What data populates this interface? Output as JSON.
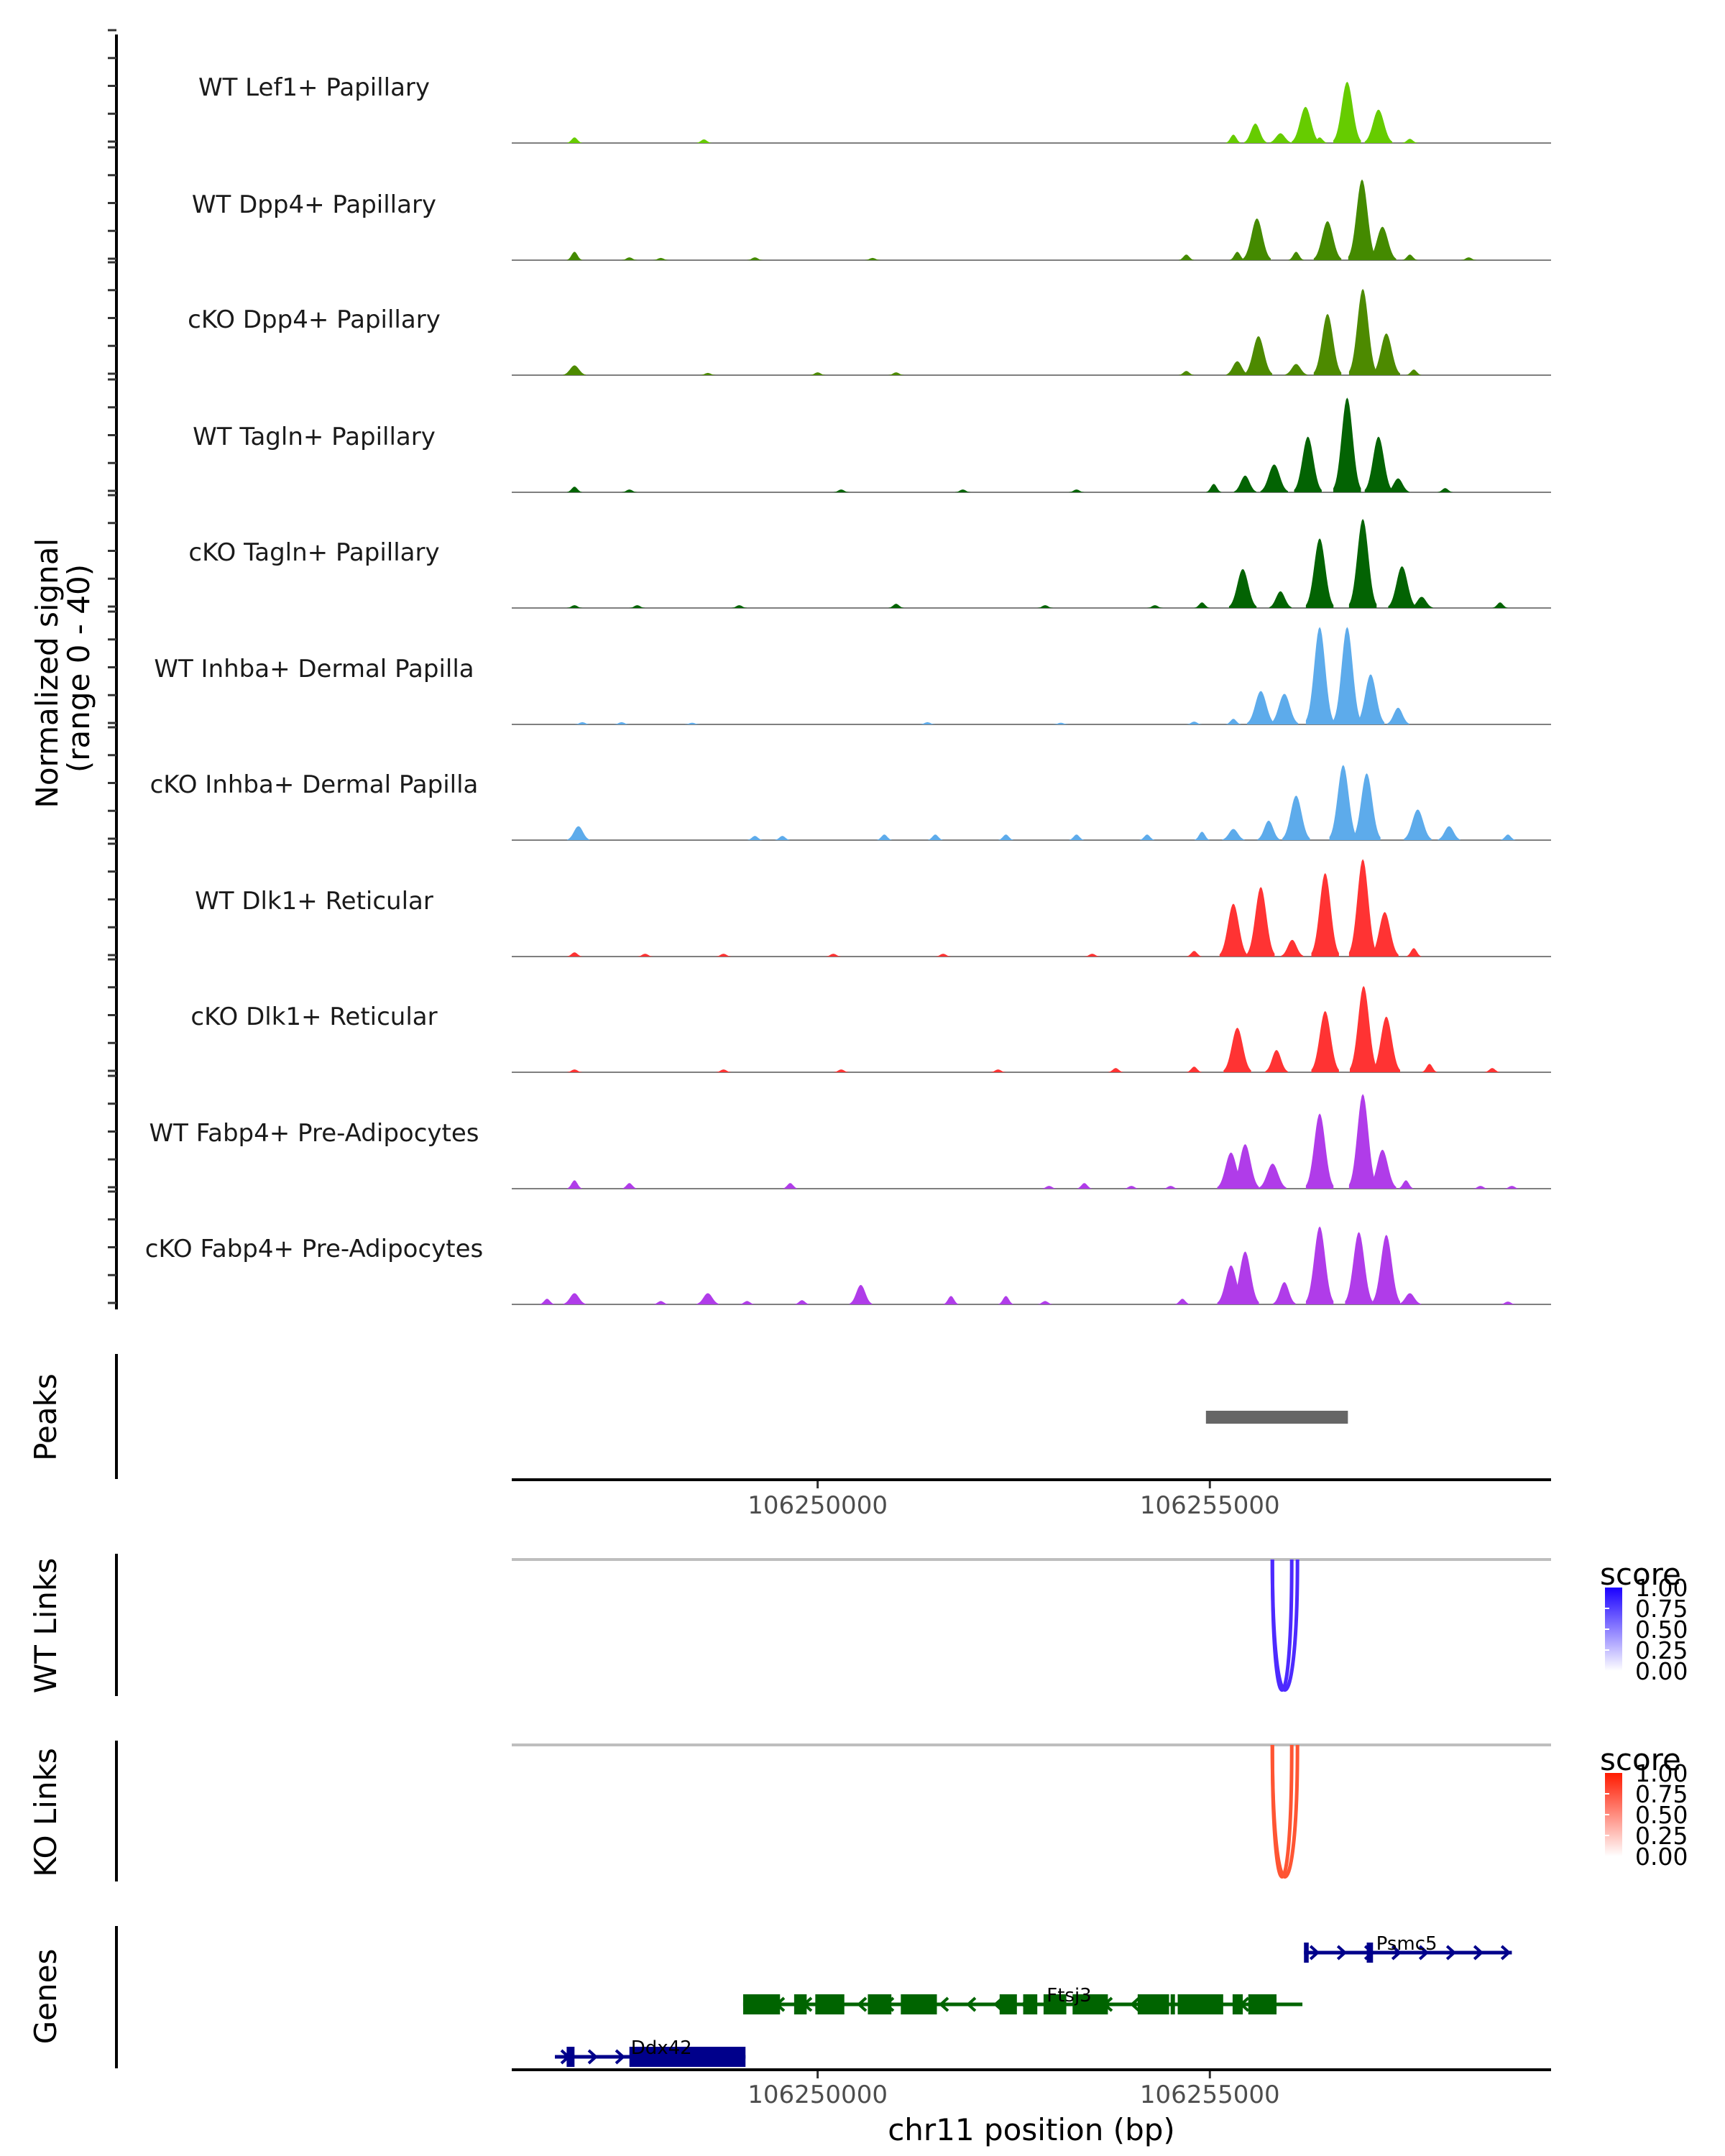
{
  "chart_data": {
    "type": "area",
    "title": "",
    "chromosome": "chr11",
    "xlabel": "chr11 position (bp)",
    "ylabel": "Normalized signal\n(range 0 - 40)",
    "ylabel_lines": [
      "Normalized signal",
      "(range 0 - 40)"
    ],
    "ylim": [
      0,
      40
    ],
    "xlim": [
      106246100,
      106259350
    ],
    "x_ticks": [
      106250000,
      106255000
    ],
    "x_tick_labels": [
      "106250000",
      "106255000"
    ],
    "coverage_tracks": [
      {
        "name": "WT Lef1+ Papillary",
        "color": "#66cc00",
        "peaks": [
          [
            106246900,
            2
          ],
          [
            106248550,
            1.3
          ],
          [
            106255300,
            3
          ],
          [
            106255580,
            7
          ],
          [
            106255900,
            3.5
          ],
          [
            106256220,
            13
          ],
          [
            106256750,
            22
          ],
          [
            106257150,
            12
          ],
          [
            106256400,
            2
          ],
          [
            106257550,
            1.5
          ]
        ]
      },
      {
        "name": "WT Dpp4+ Papillary",
        "color": "#448a00",
        "peaks": [
          [
            106246900,
            3
          ],
          [
            106247600,
            1
          ],
          [
            106248000,
            0.8
          ],
          [
            106249200,
            1
          ],
          [
            106250700,
            0.8
          ],
          [
            106254700,
            2
          ],
          [
            106255350,
            3
          ],
          [
            106255600,
            15
          ],
          [
            106256100,
            3
          ],
          [
            106256500,
            14
          ],
          [
            106256940,
            29
          ],
          [
            106257200,
            12
          ],
          [
            106257550,
            2
          ],
          [
            106258300,
            1
          ]
        ]
      },
      {
        "name": "cKO Dpp4+ Papillary",
        "color": "#4d8a00",
        "peaks": [
          [
            106246900,
            3.5
          ],
          [
            106248600,
            0.8
          ],
          [
            106250000,
            1
          ],
          [
            106251000,
            1
          ],
          [
            106254700,
            1.5
          ],
          [
            106255350,
            5
          ],
          [
            106255620,
            14
          ],
          [
            106256100,
            4
          ],
          [
            106256500,
            22
          ],
          [
            106256950,
            31
          ],
          [
            106257250,
            15
          ],
          [
            106257600,
            2
          ]
        ]
      },
      {
        "name": "WT Tagln+ Papillary",
        "color": "#036303",
        "peaks": [
          [
            106246900,
            2
          ],
          [
            106247600,
            1
          ],
          [
            106250300,
            1
          ],
          [
            106251850,
            1
          ],
          [
            106253300,
            1
          ],
          [
            106255050,
            3
          ],
          [
            106255450,
            6
          ],
          [
            106255820,
            10
          ],
          [
            106256250,
            20
          ],
          [
            106256750,
            34
          ],
          [
            106257150,
            20
          ],
          [
            106257400,
            5
          ],
          [
            106258000,
            1.5
          ]
        ]
      },
      {
        "name": "cKO Tagln+ Papillary",
        "color": "#036303",
        "peaks": [
          [
            106246900,
            1
          ],
          [
            106247700,
            1
          ],
          [
            106249000,
            1
          ],
          [
            106251000,
            1.5
          ],
          [
            106252900,
            1
          ],
          [
            106254300,
            1
          ],
          [
            106254900,
            2
          ],
          [
            106255420,
            14
          ],
          [
            106255900,
            6
          ],
          [
            106256400,
            25
          ],
          [
            106256950,
            32
          ],
          [
            106257450,
            15
          ],
          [
            106257700,
            4
          ],
          [
            106258700,
            2
          ]
        ]
      },
      {
        "name": "WT Inhba+ Dermal Papilla",
        "color": "#5dabeb",
        "peaks": [
          [
            106247000,
            0.8
          ],
          [
            106247500,
            0.8
          ],
          [
            106248400,
            0.6
          ],
          [
            106251400,
            0.8
          ],
          [
            106253100,
            0.6
          ],
          [
            106254800,
            1
          ],
          [
            106255300,
            2
          ],
          [
            106255650,
            12
          ],
          [
            106255950,
            11
          ],
          [
            106256400,
            35
          ],
          [
            106256750,
            35
          ],
          [
            106257050,
            18
          ],
          [
            106257400,
            6
          ]
        ]
      },
      {
        "name": "cKO Inhba+ Dermal Papilla",
        "color": "#5dabeb",
        "peaks": [
          [
            106246950,
            5
          ],
          [
            106249200,
            1.5
          ],
          [
            106249550,
            1.5
          ],
          [
            106250850,
            2
          ],
          [
            106251500,
            2
          ],
          [
            106252400,
            2
          ],
          [
            106253300,
            2
          ],
          [
            106254200,
            2
          ],
          [
            106254900,
            3
          ],
          [
            106255300,
            4
          ],
          [
            106255750,
            7
          ],
          [
            106256100,
            16
          ],
          [
            106256700,
            27
          ],
          [
            106257000,
            24
          ],
          [
            106257650,
            11
          ],
          [
            106258050,
            5
          ],
          [
            106258800,
            2
          ]
        ]
      },
      {
        "name": "WT Dlk1+ Reticular",
        "color": "#ff3333",
        "peaks": [
          [
            106246900,
            1.5
          ],
          [
            106247800,
            1
          ],
          [
            106248800,
            1
          ],
          [
            106250200,
            1
          ],
          [
            106251600,
            1
          ],
          [
            106253500,
            1
          ],
          [
            106254800,
            2
          ],
          [
            106255300,
            19
          ],
          [
            106255650,
            25
          ],
          [
            106256050,
            6
          ],
          [
            106256470,
            30
          ],
          [
            106256950,
            35
          ],
          [
            106257230,
            16
          ],
          [
            106257600,
            3
          ]
        ]
      },
      {
        "name": "cKO Dlk1+ Reticular",
        "color": "#ff3333",
        "peaks": [
          [
            106246900,
            1
          ],
          [
            106248800,
            1
          ],
          [
            106250300,
            1
          ],
          [
            106252300,
            1
          ],
          [
            106253800,
            1.5
          ],
          [
            106254800,
            2
          ],
          [
            106255350,
            16
          ],
          [
            106255850,
            8
          ],
          [
            106256470,
            22
          ],
          [
            106256960,
            31
          ],
          [
            106257250,
            20
          ],
          [
            106257800,
            3
          ],
          [
            106258600,
            1.5
          ]
        ]
      },
      {
        "name": "WT Fabp4+ Pre-Adipocytes",
        "color": "#b03ce9",
        "peaks": [
          [
            106246900,
            3
          ],
          [
            106247600,
            2
          ],
          [
            106249650,
            2
          ],
          [
            106252950,
            1
          ],
          [
            106253400,
            2
          ],
          [
            106254000,
            1
          ],
          [
            106254500,
            1
          ],
          [
            106255270,
            13
          ],
          [
            106255450,
            16
          ],
          [
            106255800,
            9
          ],
          [
            106256400,
            27
          ],
          [
            106256950,
            34
          ],
          [
            106257200,
            14
          ],
          [
            106257500,
            3
          ],
          [
            106258450,
            1
          ],
          [
            106258850,
            1
          ]
        ]
      },
      {
        "name": "cKO Fabp4+ Pre-Adipocytes",
        "color": "#b03ce9",
        "peaks": [
          [
            106246550,
            2
          ],
          [
            106246900,
            4
          ],
          [
            106248000,
            1.2
          ],
          [
            106248600,
            4
          ],
          [
            106249100,
            1.2
          ],
          [
            106249800,
            1.5
          ],
          [
            106250550,
            7
          ],
          [
            106251700,
            3
          ],
          [
            106252400,
            3
          ],
          [
            106252900,
            1.2
          ],
          [
            106254650,
            2
          ],
          [
            106255270,
            14
          ],
          [
            106255450,
            19
          ],
          [
            106255950,
            8
          ],
          [
            106256400,
            28
          ],
          [
            106256900,
            26
          ],
          [
            106257250,
            25
          ],
          [
            106257550,
            4
          ],
          [
            106258800,
            1
          ]
        ]
      }
    ],
    "peaks_track": {
      "label": "Peaks",
      "color": "#666666",
      "regions": [
        {
          "start": 106254950,
          "end": 106256760
        }
      ]
    },
    "link_tracks": [
      {
        "label": "WT Links",
        "legend_title": "score",
        "color_high": "#1a00ff",
        "color_low": "#ffffff",
        "line_color": "#4d2aff",
        "legend_ticks": [
          "1.00",
          "0.75",
          "0.50",
          "0.25",
          "0.00"
        ],
        "links": [
          {
            "start": 106255797,
            "end": 106256044,
            "score": 0.75
          },
          {
            "start": 106255797,
            "end": 106256117,
            "score": 0.75
          }
        ]
      },
      {
        "label": "KO Links",
        "legend_title": "score",
        "color_high": "#ff1a00",
        "color_low": "#ffffff",
        "line_color": "#ff5533",
        "legend_ticks": [
          "1.00",
          "0.75",
          "0.50",
          "0.25",
          "0.00"
        ],
        "links": [
          {
            "start": 106255797,
            "end": 106256044,
            "score": 0.75
          },
          {
            "start": 106255797,
            "end": 106256117,
            "score": 0.75
          }
        ]
      }
    ],
    "genes_track": {
      "label": "Genes",
      "genes": [
        {
          "name": "Psmc5",
          "strand": "+",
          "color": "#00008b",
          "row": 0,
          "start": 106256200,
          "end": 106258850,
          "exons": [
            [
              106256200,
              106256260
            ],
            [
              106257000,
              106257080
            ]
          ]
        },
        {
          "name": "Ftsj3",
          "strand": "-",
          "color": "#006400",
          "row": 1,
          "start": 106249050,
          "end": 106256180,
          "exons": [
            [
              106249050,
              106249520
            ],
            [
              106249700,
              106249860
            ],
            [
              106249970,
              106250340
            ],
            [
              106250640,
              106250940
            ],
            [
              106251060,
              106251520
            ],
            [
              106252320,
              106252540
            ],
            [
              106252620,
              106252800
            ],
            [
              106252880,
              106253170
            ],
            [
              106253250,
              106253700
            ],
            [
              106254080,
              106254480
            ],
            [
              106254500,
              106254550
            ],
            [
              106254590,
              106255170
            ],
            [
              106255290,
              106255420
            ],
            [
              106255490,
              106255850
            ]
          ]
        },
        {
          "name": "Ddx42",
          "strand": "+",
          "color": "#00008b",
          "row": 2,
          "start": 106246650,
          "end": 106249080,
          "exons": [
            [
              106246800,
              106246900
            ],
            [
              106247600,
              106249080
            ]
          ]
        }
      ]
    }
  }
}
